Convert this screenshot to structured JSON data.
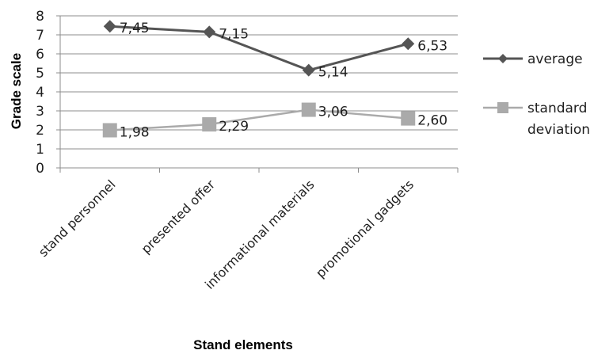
{
  "chart_data": {
    "type": "line",
    "title": "",
    "xlabel": "Stand elements",
    "ylabel": "Grade scale",
    "categories": [
      "stand personnel",
      "presented offer",
      "informational materials",
      "promotional gadgets"
    ],
    "ylim": [
      0,
      8
    ],
    "yticks": [
      "0",
      "1",
      "2",
      "3",
      "4",
      "5",
      "6",
      "7",
      "8"
    ],
    "grid": true,
    "legend_position": "right",
    "series": [
      {
        "name": "average",
        "values": [
          7.45,
          7.15,
          5.14,
          6.53
        ],
        "labels": [
          "7,45",
          "7,15",
          "5,14",
          "6,53"
        ],
        "color": "#555555",
        "marker": "diamond",
        "legend_lines": [
          "average"
        ]
      },
      {
        "name": "standard deviation",
        "values": [
          1.98,
          2.29,
          3.06,
          2.6
        ],
        "labels": [
          "1,98",
          "2,29",
          "3,06",
          "2,60"
        ],
        "color": "#aaaaaa",
        "marker": "square",
        "legend_lines": [
          "standard",
          "deviation"
        ]
      }
    ]
  }
}
